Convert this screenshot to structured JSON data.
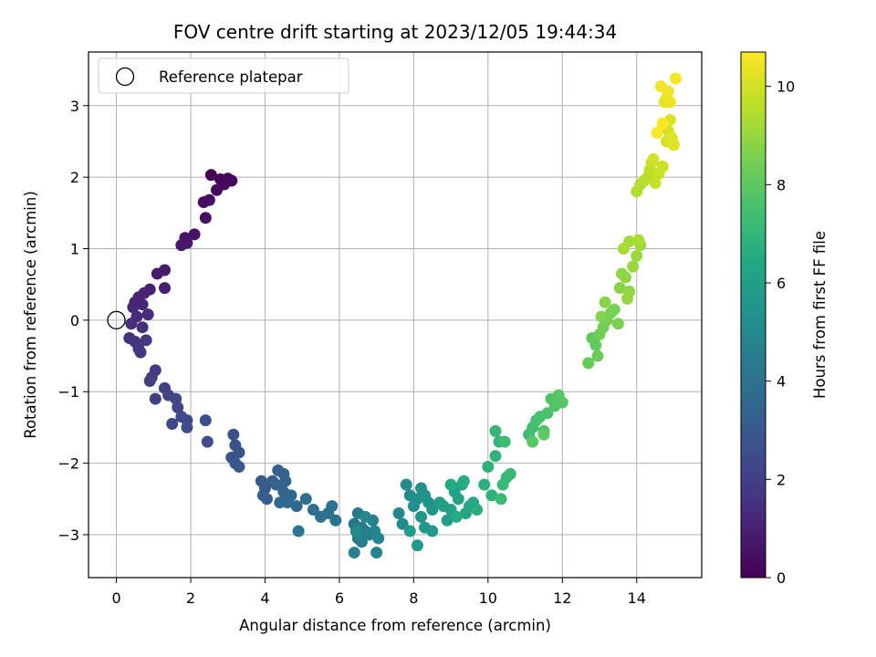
{
  "chart_data": {
    "type": "scatter",
    "title": "FOV centre drift starting at 2023/12/05 19:44:34",
    "xlabel": "Angular distance from reference (arcmin)",
    "ylabel": "Rotation from reference (arcmin)",
    "xlim": [
      -0.75,
      15.75
    ],
    "ylim": [
      -3.6,
      3.75
    ],
    "xticks": [
      0,
      2,
      4,
      6,
      8,
      10,
      12,
      14
    ],
    "yticks": [
      -3,
      -2,
      -1,
      0,
      1,
      2,
      3
    ],
    "grid": true,
    "legend": {
      "placement": "top-left",
      "entries": [
        "Reference platepar"
      ]
    },
    "reference_point": {
      "x": 0,
      "y": 0
    },
    "colorbar": {
      "label": "Hours from first FF file",
      "colormap": "viridis",
      "range": [
        0,
        10.7
      ],
      "ticks": [
        0,
        2,
        4,
        6,
        8,
        10
      ]
    },
    "points_hours_by_index": [
      0.0,
      10.7
    ],
    "points": [
      [
        2.55,
        2.03
      ],
      [
        2.8,
        1.97
      ],
      [
        3.0,
        1.98
      ],
      [
        3.1,
        1.95
      ],
      [
        2.9,
        1.9
      ],
      [
        2.7,
        1.82
      ],
      [
        2.35,
        1.65
      ],
      [
        2.5,
        1.68
      ],
      [
        2.4,
        1.43
      ],
      [
        2.1,
        1.2
      ],
      [
        1.85,
        1.15
      ],
      [
        1.75,
        1.05
      ],
      [
        1.9,
        1.08
      ],
      [
        1.3,
        0.7
      ],
      [
        1.1,
        0.65
      ],
      [
        1.3,
        0.45
      ],
      [
        0.9,
        0.43
      ],
      [
        0.75,
        0.38
      ],
      [
        0.6,
        0.32
      ],
      [
        0.5,
        0.25
      ],
      [
        0.45,
        0.18
      ],
      [
        0.7,
        0.22
      ],
      [
        0.85,
        0.08
      ],
      [
        0.55,
        0.05
      ],
      [
        0.4,
        -0.05
      ],
      [
        0.7,
        -0.1
      ],
      [
        0.35,
        -0.25
      ],
      [
        0.5,
        -0.3
      ],
      [
        0.6,
        -0.4
      ],
      [
        0.65,
        -0.45
      ],
      [
        0.8,
        -0.28
      ],
      [
        1.05,
        -0.7
      ],
      [
        0.95,
        -0.8
      ],
      [
        0.9,
        -0.85
      ],
      [
        1.05,
        -1.1
      ],
      [
        1.3,
        -0.95
      ],
      [
        1.4,
        -1.05
      ],
      [
        1.6,
        -1.1
      ],
      [
        1.65,
        -1.22
      ],
      [
        1.5,
        -1.45
      ],
      [
        1.75,
        -1.35
      ],
      [
        1.9,
        -1.4
      ],
      [
        1.9,
        -1.5
      ],
      [
        2.4,
        -1.4
      ],
      [
        2.45,
        -1.7
      ],
      [
        3.15,
        -1.6
      ],
      [
        3.2,
        -1.75
      ],
      [
        3.3,
        -1.85
      ],
      [
        3.1,
        -1.92
      ],
      [
        3.2,
        -2.0
      ],
      [
        3.3,
        -2.05
      ],
      [
        3.9,
        -2.25
      ],
      [
        4.0,
        -2.35
      ],
      [
        3.95,
        -2.45
      ],
      [
        4.05,
        -2.5
      ],
      [
        4.2,
        -2.25
      ],
      [
        4.35,
        -2.1
      ],
      [
        4.5,
        -2.15
      ],
      [
        4.55,
        -2.25
      ],
      [
        4.3,
        -2.3
      ],
      [
        4.5,
        -2.4
      ],
      [
        4.7,
        -2.45
      ],
      [
        4.4,
        -2.55
      ],
      [
        4.6,
        -2.55
      ],
      [
        4.85,
        -2.6
      ],
      [
        5.1,
        -2.5
      ],
      [
        5.3,
        -2.65
      ],
      [
        5.5,
        -2.75
      ],
      [
        5.7,
        -2.7
      ],
      [
        5.8,
        -2.6
      ],
      [
        5.9,
        -2.8
      ],
      [
        4.9,
        -2.95
      ],
      [
        6.4,
        -2.85
      ],
      [
        6.5,
        -2.7
      ],
      [
        6.6,
        -2.9
      ],
      [
        6.7,
        -2.95
      ],
      [
        6.5,
        -3.05
      ],
      [
        6.6,
        -3.1
      ],
      [
        6.8,
        -3.0
      ],
      [
        6.9,
        -2.8
      ],
      [
        6.4,
        -3.25
      ],
      [
        7.0,
        -3.25
      ],
      [
        7.05,
        -3.05
      ],
      [
        6.95,
        -2.95
      ],
      [
        6.7,
        -2.75
      ],
      [
        6.45,
        -2.95
      ],
      [
        7.6,
        -2.7
      ],
      [
        7.7,
        -2.85
      ],
      [
        7.8,
        -2.3
      ],
      [
        7.9,
        -2.45
      ],
      [
        8.0,
        -2.6
      ],
      [
        8.1,
        -2.5
      ],
      [
        8.2,
        -2.35
      ],
      [
        8.3,
        -2.45
      ],
      [
        8.4,
        -2.55
      ],
      [
        8.5,
        -2.65
      ],
      [
        8.2,
        -2.75
      ],
      [
        8.3,
        -2.9
      ],
      [
        8.5,
        -2.95
      ],
      [
        8.1,
        -3.15
      ],
      [
        7.9,
        -2.95
      ],
      [
        8.7,
        -2.55
      ],
      [
        8.8,
        -2.6
      ],
      [
        8.9,
        -2.8
      ],
      [
        9.0,
        -2.65
      ],
      [
        9.1,
        -2.4
      ],
      [
        9.2,
        -2.5
      ],
      [
        9.3,
        -2.3
      ],
      [
        9.4,
        -2.7
      ],
      [
        9.5,
        -2.6
      ],
      [
        9.6,
        -2.55
      ],
      [
        9.0,
        -2.3
      ],
      [
        9.15,
        -2.75
      ],
      [
        9.35,
        -2.25
      ],
      [
        9.7,
        -2.65
      ],
      [
        9.9,
        -2.3
      ],
      [
        10.0,
        -2.05
      ],
      [
        10.1,
        -2.45
      ],
      [
        10.2,
        -1.9
      ],
      [
        10.3,
        -1.7
      ],
      [
        10.2,
        -1.55
      ],
      [
        10.5,
        -2.2
      ],
      [
        10.6,
        -2.15
      ],
      [
        10.4,
        -2.3
      ],
      [
        10.35,
        -2.5
      ],
      [
        10.45,
        -1.7
      ],
      [
        11.1,
        -1.6
      ],
      [
        11.2,
        -1.5
      ],
      [
        11.3,
        -1.4
      ],
      [
        11.4,
        -1.35
      ],
      [
        11.5,
        -1.55
      ],
      [
        11.6,
        -1.3
      ],
      [
        11.7,
        -1.1
      ],
      [
        11.8,
        -1.2
      ],
      [
        11.9,
        -1.05
      ],
      [
        12.0,
        -1.15
      ],
      [
        11.2,
        -1.7
      ],
      [
        11.5,
        -1.6
      ],
      [
        12.8,
        -0.25
      ],
      [
        12.9,
        -0.35
      ],
      [
        12.7,
        -0.6
      ],
      [
        12.95,
        -0.5
      ],
      [
        13.0,
        -0.2
      ],
      [
        13.1,
        -0.1
      ],
      [
        13.2,
        0.0
      ],
      [
        13.3,
        0.1
      ],
      [
        13.4,
        0.15
      ],
      [
        13.5,
        -0.05
      ],
      [
        13.05,
        0.05
      ],
      [
        13.15,
        0.25
      ],
      [
        13.55,
        0.45
      ],
      [
        13.6,
        0.65
      ],
      [
        13.7,
        0.6
      ],
      [
        13.8,
        0.4
      ],
      [
        13.75,
        0.3
      ],
      [
        13.9,
        0.75
      ],
      [
        14.0,
        0.9
      ],
      [
        14.1,
        1.05
      ],
      [
        13.8,
        1.1
      ],
      [
        13.65,
        1.0
      ],
      [
        14.05,
        1.12
      ],
      [
        14.0,
        1.8
      ],
      [
        14.1,
        1.9
      ],
      [
        14.2,
        1.95
      ],
      [
        14.3,
        2.0
      ],
      [
        14.35,
        2.1
      ],
      [
        14.4,
        2.2
      ],
      [
        14.5,
        1.92
      ],
      [
        14.6,
        2.05
      ],
      [
        14.7,
        2.15
      ],
      [
        14.45,
        2.25
      ],
      [
        14.8,
        2.5
      ],
      [
        14.85,
        2.65
      ],
      [
        14.9,
        2.8
      ],
      [
        14.95,
        2.55
      ],
      [
        15.0,
        2.45
      ],
      [
        14.75,
        3.05
      ],
      [
        14.8,
        3.1
      ],
      [
        14.9,
        3.05
      ],
      [
        14.85,
        3.2
      ],
      [
        14.65,
        3.27
      ],
      [
        15.05,
        3.38
      ],
      [
        14.55,
        2.62
      ],
      [
        14.7,
        2.75
      ]
    ]
  }
}
